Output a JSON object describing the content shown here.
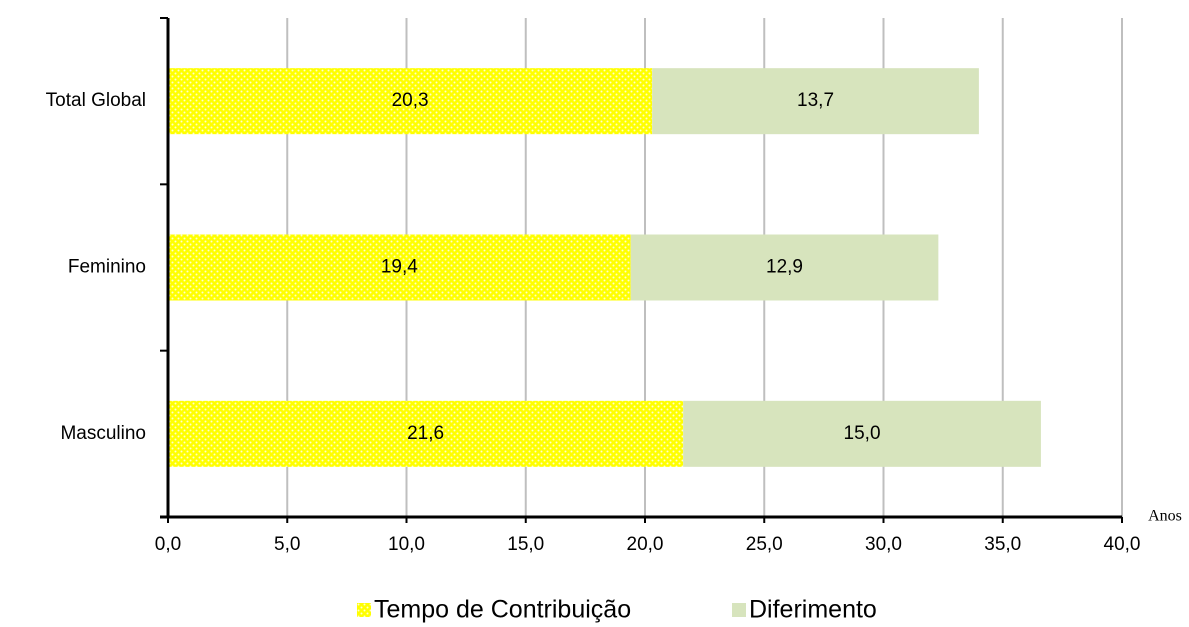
{
  "chart_data": {
    "type": "stacked-barh",
    "categories": [
      "Total Global",
      "Feminino",
      "Masculino"
    ],
    "series": [
      {
        "name": "Tempo de Contribuição",
        "color": "#ffff00",
        "values": [
          20.3,
          19.4,
          21.6
        ],
        "value_labels": [
          "20,3",
          "19,4",
          "21,6"
        ]
      },
      {
        "name": "Diferimento",
        "color": "#d7e4bd",
        "values": [
          13.7,
          12.9,
          15.0
        ],
        "value_labels": [
          "13,7",
          "12,9",
          "15,0"
        ]
      }
    ],
    "x_label": "Anos",
    "xlim": [
      0,
      40
    ],
    "xticks": [
      {
        "value": 0,
        "label": "0,0"
      },
      {
        "value": 5,
        "label": "5,0"
      },
      {
        "value": 10,
        "label": "10,0"
      },
      {
        "value": 15,
        "label": "15,0"
      },
      {
        "value": 20,
        "label": "20,0"
      },
      {
        "value": 25,
        "label": "25,0"
      },
      {
        "value": 30,
        "label": "30,0"
      },
      {
        "value": 35,
        "label": "35,0"
      },
      {
        "value": 40,
        "label": "40,0"
      }
    ],
    "grid": true,
    "legend": "bottom"
  }
}
